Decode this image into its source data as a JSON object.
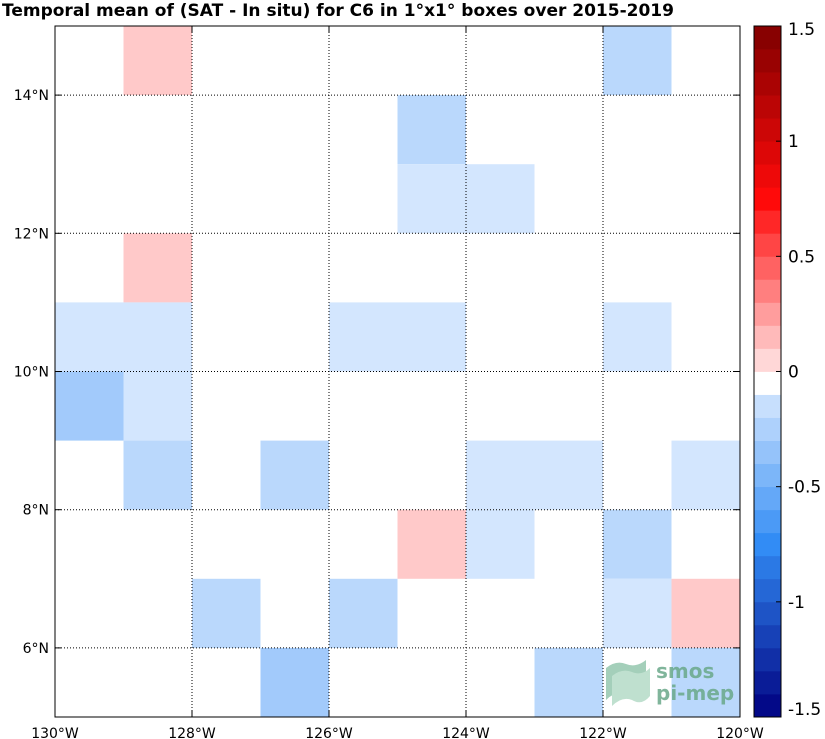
{
  "chart_data": {
    "type": "heatmap",
    "title": "Temporal mean of (SAT - In situ) for C6 in 1°x1° boxes over 2015-2019",
    "x_unit": "degrees longitude (negative = W)",
    "y_unit": "degrees latitude (N)",
    "xlim": [
      -130,
      -120
    ],
    "ylim": [
      5,
      15
    ],
    "x_ticks": [
      -130,
      -128,
      -126,
      -124,
      -122,
      -120
    ],
    "x_tick_labels": [
      "130°W",
      "128°W",
      "126°W",
      "124°W",
      "122°W",
      "120°W"
    ],
    "y_ticks": [
      6,
      8,
      10,
      12,
      14
    ],
    "y_tick_labels": [
      "6°N",
      "8°N",
      "10°N",
      "12°N",
      "14°N"
    ],
    "grid": true,
    "colorbar": {
      "min": -1.5,
      "max": 1.5,
      "step": 0.1,
      "ticks": [
        -1.5,
        -1,
        -0.5,
        0,
        0.5,
        1,
        1.5
      ],
      "tick_labels": [
        "-1.5",
        "-1",
        "-0.5",
        "0",
        "0.5",
        "1",
        "1.5"
      ],
      "palette": "blue-white-red"
    },
    "cells": [
      {
        "lon": -129,
        "lat": 14,
        "value": 0.1
      },
      {
        "lon": -122,
        "lat": 14,
        "value": -0.2
      },
      {
        "lon": -125,
        "lat": 13,
        "value": -0.2
      },
      {
        "lon": -125,
        "lat": 12,
        "value": -0.1
      },
      {
        "lon": -124,
        "lat": 12,
        "value": -0.1
      },
      {
        "lon": -129,
        "lat": 11,
        "value": 0.1
      },
      {
        "lon": -130,
        "lat": 10,
        "value": -0.1
      },
      {
        "lon": -129,
        "lat": 10,
        "value": -0.1
      },
      {
        "lon": -126,
        "lat": 10,
        "value": -0.1
      },
      {
        "lon": -125,
        "lat": 10,
        "value": -0.1
      },
      {
        "lon": -122,
        "lat": 10,
        "value": -0.1
      },
      {
        "lon": -130,
        "lat": 9,
        "value": -0.3
      },
      {
        "lon": -129,
        "lat": 9,
        "value": -0.1
      },
      {
        "lon": -129,
        "lat": 8,
        "value": -0.2
      },
      {
        "lon": -127,
        "lat": 8,
        "value": -0.2
      },
      {
        "lon": -124,
        "lat": 8,
        "value": -0.1
      },
      {
        "lon": -123,
        "lat": 8,
        "value": -0.1
      },
      {
        "lon": -121,
        "lat": 8,
        "value": -0.1
      },
      {
        "lon": -125,
        "lat": 7,
        "value": 0.1
      },
      {
        "lon": -124,
        "lat": 7,
        "value": -0.1
      },
      {
        "lon": -122,
        "lat": 7,
        "value": -0.2
      },
      {
        "lon": -128,
        "lat": 6,
        "value": -0.2
      },
      {
        "lon": -126,
        "lat": 6,
        "value": -0.2
      },
      {
        "lon": -122,
        "lat": 6,
        "value": -0.1
      },
      {
        "lon": -121,
        "lat": 6,
        "value": 0.1
      },
      {
        "lon": -127,
        "lat": 5,
        "value": -0.3
      },
      {
        "lon": -123,
        "lat": 5,
        "value": -0.2
      },
      {
        "lon": -121,
        "lat": 5,
        "value": -0.2
      }
    ]
  },
  "logo": {
    "line1": "smos",
    "line2": "pi-mep",
    "color": "#6aa98a"
  }
}
